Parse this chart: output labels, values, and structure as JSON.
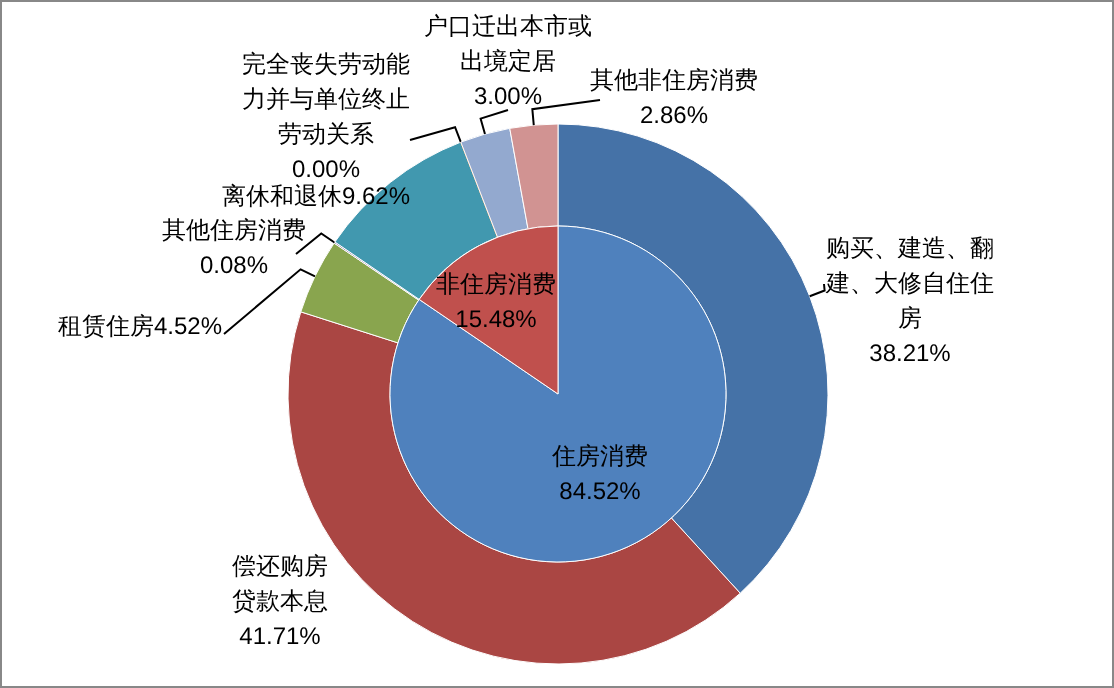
{
  "chart_data": [
    {
      "type": "donut",
      "categories": [
        "购买、建造、翻建、大修自住住房",
        "偿还购房贷款本息",
        "租赁住房",
        "其他住房消费",
        "离休和退休",
        "完全丧失劳动能力并与单位终止劳动关系",
        "户口迁出本市或出境定居",
        "其他非住房消费"
      ],
      "values": [
        38.21,
        41.71,
        4.52,
        0.08,
        9.62,
        0.0,
        3.0,
        2.86
      ],
      "colors": [
        "#4572a7",
        "#aa4643",
        "#89a54e",
        "#71588f",
        "#4198af",
        "#db843d",
        "#93a9cf",
        "#d19392"
      ],
      "value_labels": [
        "38.21%",
        "41.71%",
        "4.52%",
        "0.08%",
        "9.62%",
        "0.00%",
        "3.00%",
        "2.86%"
      ]
    },
    {
      "type": "pie",
      "categories": [
        "住房消费",
        "非住房消费"
      ],
      "values": [
        84.52,
        15.48
      ],
      "colors": [
        "#4f81bd",
        "#c0504d"
      ],
      "value_labels": [
        "84.52%",
        "15.48%"
      ]
    }
  ]
}
